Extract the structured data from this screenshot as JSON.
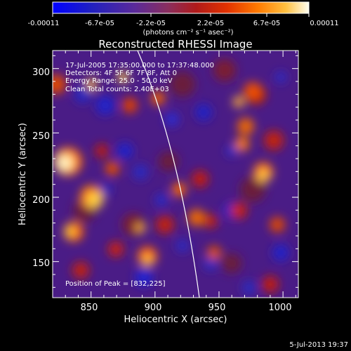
{
  "colorbar": {
    "tick_labels": [
      "-0.00011",
      "-6.7e-05",
      "-2.2e-05",
      "2.2e-05",
      "6.7e-05",
      "0.00011"
    ],
    "units_label": "(photons cm⁻² s⁻¹ asec⁻²)",
    "colors": [
      "#0000ff",
      "#2020c0",
      "#5a2a9a",
      "#8a2e5e",
      "#b01a1a",
      "#e23200",
      "#ff7a00",
      "#ffc040",
      "#fffff0"
    ]
  },
  "plot": {
    "title": "Reconstructed RHESSI Image",
    "xlabel": "Heliocentric X (arcsec)",
    "ylabel": "Heliocentric Y (arcsec)",
    "x_ticks": [
      "850",
      "900",
      "950",
      "1000"
    ],
    "y_ticks": [
      "150",
      "200",
      "250",
      "300"
    ],
    "x_range": [
      820,
      1012
    ],
    "y_range": [
      122,
      314
    ]
  },
  "annotations": {
    "time_range": "17-Jul-2005 17:35:00.000 to 17:37:48.000",
    "detectors": "Detectors: 4F 5F 6F 7F 8F, Att 0",
    "energy": "Energy Range: 25.0 - 50.0 keV",
    "clean": "Clean    Total counts: 2.40E+03",
    "peak": "Position of Peak = [832,225]"
  },
  "footer": {
    "timestamp": "5-Jul-2013 19:37"
  }
}
